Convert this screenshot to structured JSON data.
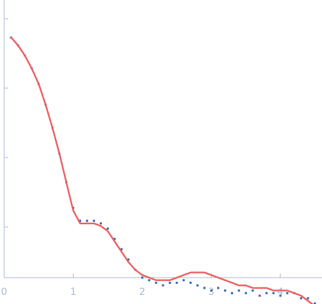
{
  "chart_data": {
    "type": "scatter",
    "title": "",
    "xlabel": "",
    "ylabel": "",
    "xlim": [
      0,
      4.6
    ],
    "ylim": [
      0,
      1.0
    ],
    "x_ticks": [
      "0",
      "1",
      "2",
      "3",
      "4"
    ],
    "x_tick_values": [
      0,
      1,
      2,
      3,
      4
    ],
    "y_tick_values": [
      0.25,
      0.5,
      0.75,
      1.0
    ],
    "grid": false,
    "colors": {
      "points": "#2f63b9",
      "fit": "#ec5f5f",
      "axis": "#a9b8d0"
    },
    "series": [
      {
        "type": "scatter",
        "x": [
          0.1,
          0.2,
          0.3,
          0.4,
          0.5,
          0.6,
          0.7,
          0.8,
          0.9,
          1.0,
          1.1,
          1.2,
          1.3,
          1.4,
          1.5,
          1.6,
          1.7,
          1.8,
          1.9,
          2.0,
          2.1,
          2.2,
          2.3,
          2.4,
          2.5,
          2.6,
          2.7,
          2.8,
          2.9,
          3.0,
          3.1,
          3.2,
          3.3,
          3.4,
          3.5,
          3.6,
          3.7,
          3.8,
          3.9,
          4.0,
          4.1,
          4.2,
          4.3,
          4.4,
          4.5,
          4.6
        ],
        "y": [
          0.93,
          0.9,
          0.86,
          0.81,
          0.75,
          0.67,
          0.58,
          0.48,
          0.37,
          0.27,
          0.22,
          0.22,
          0.22,
          0.21,
          0.19,
          0.15,
          0.11,
          0.07,
          0.03,
          0.0,
          -0.01,
          -0.02,
          -0.03,
          -0.02,
          -0.02,
          -0.01,
          -0.02,
          -0.03,
          -0.04,
          -0.05,
          -0.04,
          -0.05,
          -0.06,
          -0.05,
          -0.06,
          -0.05,
          -0.07,
          -0.06,
          -0.06,
          -0.07,
          -0.06,
          -0.06,
          -0.08,
          -0.08,
          -0.1,
          -0.11
        ]
      },
      {
        "type": "line",
        "x": [
          0.1,
          0.2,
          0.3,
          0.4,
          0.5,
          0.6,
          0.7,
          0.8,
          0.9,
          1.0,
          1.1,
          1.2,
          1.3,
          1.4,
          1.5,
          1.6,
          1.7,
          1.8,
          1.9,
          2.0,
          2.1,
          2.2,
          2.3,
          2.4,
          2.5,
          2.6,
          2.7,
          2.8,
          2.9,
          3.0,
          3.1,
          3.2,
          3.3,
          3.4,
          3.5,
          3.6,
          3.7,
          3.8,
          3.9,
          4.0,
          4.1,
          4.2,
          4.3,
          4.4,
          4.5,
          4.6
        ],
        "y": [
          0.93,
          0.9,
          0.86,
          0.81,
          0.75,
          0.67,
          0.58,
          0.48,
          0.37,
          0.26,
          0.21,
          0.21,
          0.21,
          0.2,
          0.18,
          0.14,
          0.1,
          0.06,
          0.03,
          0.01,
          -0.0,
          -0.01,
          -0.01,
          -0.01,
          0.0,
          0.01,
          0.02,
          0.02,
          0.02,
          0.01,
          0.0,
          -0.01,
          -0.02,
          -0.03,
          -0.03,
          -0.04,
          -0.04,
          -0.04,
          -0.05,
          -0.05,
          -0.05,
          -0.06,
          -0.07,
          -0.09,
          -0.11,
          -0.13
        ]
      }
    ]
  }
}
